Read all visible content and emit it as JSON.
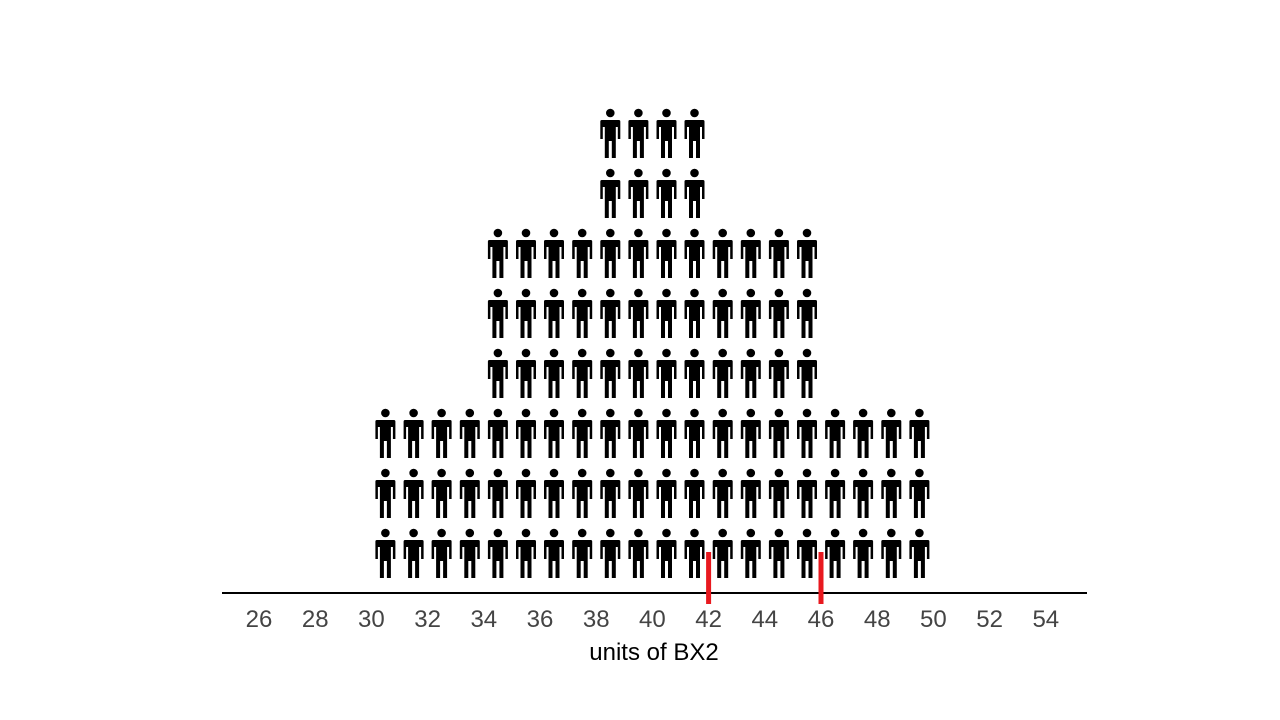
{
  "chart_data": {
    "type": "pictograph",
    "title": "",
    "xlabel": "units of BX2",
    "ylabel": "",
    "xlim": [
      24.6,
      55.4
    ],
    "x_ticks": [
      26,
      28,
      30,
      32,
      34,
      36,
      38,
      40,
      42,
      44,
      46,
      48,
      50,
      52,
      54
    ],
    "x_tick_labels": [
      "26",
      "28",
      "30",
      "32",
      "34",
      "36",
      "38",
      "40",
      "42",
      "44",
      "46",
      "48",
      "50",
      "52",
      "54"
    ],
    "icon": "person-icon",
    "columns": [
      {
        "x": 30.5,
        "count": 3
      },
      {
        "x": 31.5,
        "count": 3
      },
      {
        "x": 32.5,
        "count": 3
      },
      {
        "x": 33.5,
        "count": 3
      },
      {
        "x": 34.5,
        "count": 6
      },
      {
        "x": 35.5,
        "count": 6
      },
      {
        "x": 36.5,
        "count": 6
      },
      {
        "x": 37.5,
        "count": 6
      },
      {
        "x": 38.5,
        "count": 8
      },
      {
        "x": 39.5,
        "count": 8
      },
      {
        "x": 40.5,
        "count": 8
      },
      {
        "x": 41.5,
        "count": 8
      },
      {
        "x": 42.5,
        "count": 6
      },
      {
        "x": 43.5,
        "count": 6
      },
      {
        "x": 44.5,
        "count": 6
      },
      {
        "x": 45.5,
        "count": 6
      },
      {
        "x": 46.5,
        "count": 3
      },
      {
        "x": 47.5,
        "count": 3
      },
      {
        "x": 48.5,
        "count": 3
      },
      {
        "x": 49.5,
        "count": 3
      }
    ],
    "markers": [
      {
        "x": 42,
        "color": "#e8191f"
      },
      {
        "x": 46,
        "color": "#e8191f"
      }
    ],
    "grid": false,
    "legend": "none"
  },
  "colors": {
    "icon": "#000000",
    "axis": "#000000",
    "tick_label": "#444444",
    "marker": "#e8191f"
  }
}
